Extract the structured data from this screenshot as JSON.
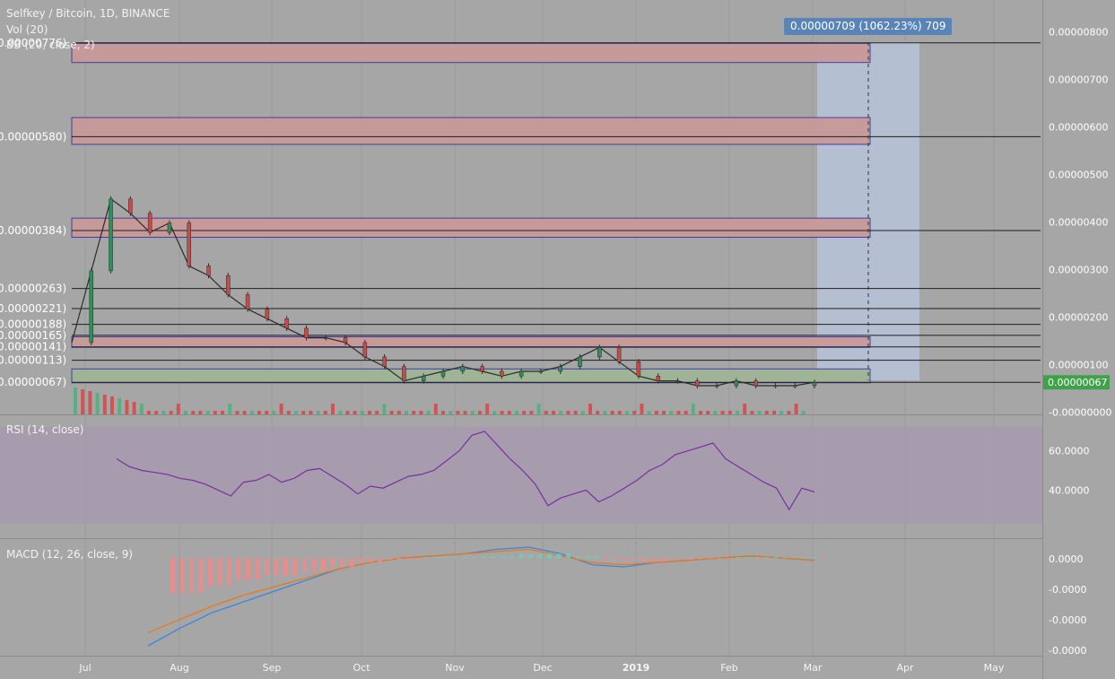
{
  "main_pane": {
    "title": "Selfkey / Bitcoin, 1D, BINANCE",
    "vol_legend": "Vol (20)",
    "bb_legend": "BB (20, close, 2)",
    "price_label": "0.00000067",
    "price_label_color": "#3fa24a",
    "measure_label": "0.00000709 (1062.23%) 709",
    "measure_color": "#5a83b8"
  },
  "rsi_pane": {
    "legend": "RSI (14, close)",
    "line_color": "#7a2fa0",
    "band_color": "#a79aae"
  },
  "macd_pane": {
    "legend": "MACD (12, 26, close, 9)",
    "macd_color": "#3a86d8",
    "signal_color": "#e8781e"
  },
  "chart_data": [
    {
      "type": "candlestick",
      "title": "Selfkey / Bitcoin, 1D, BINANCE",
      "x_ticks": [
        "Jul",
        "Aug",
        "Sep",
        "Oct",
        "Nov",
        "Dec",
        "2019",
        "Feb",
        "Mar",
        "Apr",
        "May"
      ],
      "y_ticks": [
        "0.00000800",
        "0.00000700",
        "0.00000600",
        "0.00000500",
        "0.00000400",
        "0.00000300",
        "0.00000200",
        "0.00000100",
        "-0.00000000"
      ],
      "ylim": [
        0,
        8e-06
      ],
      "close_series": [
        {
          "x": "Jun 27",
          "y": 1.5e-06
        },
        {
          "x": "Jun 28",
          "y": 3e-06
        },
        {
          "x": "Jun 29",
          "y": 4.5e-06
        },
        {
          "x": "Jun 30",
          "y": 4.2e-06
        },
        {
          "x": "Jul 1",
          "y": 3.8e-06
        },
        {
          "x": "Jul 3",
          "y": 4e-06
        },
        {
          "x": "Jul 5",
          "y": 3.1e-06
        },
        {
          "x": "Jul 8",
          "y": 2.9e-06
        },
        {
          "x": "Jul 10",
          "y": 2.5e-06
        },
        {
          "x": "Jul 12",
          "y": 2.2e-06
        },
        {
          "x": "Jul 15",
          "y": 2e-06
        },
        {
          "x": "Jul 18",
          "y": 1.8e-06
        },
        {
          "x": "Jul 21",
          "y": 1.6e-06
        },
        {
          "x": "Jul 25",
          "y": 1.6e-06
        },
        {
          "x": "Jul 29",
          "y": 1.5e-06
        },
        {
          "x": "Aug 3",
          "y": 1.2e-06
        },
        {
          "x": "Aug 8",
          "y": 1e-06
        },
        {
          "x": "Aug 12",
          "y": 7e-07
        },
        {
          "x": "Aug 18",
          "y": 8e-07
        },
        {
          "x": "Aug 25",
          "y": 9e-07
        },
        {
          "x": "Sep 1",
          "y": 1e-06
        },
        {
          "x": "Sep 10",
          "y": 9e-07
        },
        {
          "x": "Sep 20",
          "y": 8e-07
        },
        {
          "x": "Oct 1",
          "y": 9e-07
        },
        {
          "x": "Oct 10",
          "y": 9e-07
        },
        {
          "x": "Oct 20",
          "y": 1e-06
        },
        {
          "x": "Oct 28",
          "y": 1.2e-06
        },
        {
          "x": "Nov 2",
          "y": 1.4e-06
        },
        {
          "x": "Nov 10",
          "y": 1.1e-06
        },
        {
          "x": "Nov 18",
          "y": 8e-07
        },
        {
          "x": "Nov 25",
          "y": 7e-07
        },
        {
          "x": "Dec 5",
          "y": 7e-07
        },
        {
          "x": "Dec 20",
          "y": 6e-07
        },
        {
          "x": "Jan 5",
          "y": 6e-07
        },
        {
          "x": "Jan 20",
          "y": 7e-07
        },
        {
          "x": "Feb 1",
          "y": 6e-07
        },
        {
          "x": "Feb 15",
          "y": 6e-07
        },
        {
          "x": "Feb 28",
          "y": 6e-07
        },
        {
          "x": "Mar 1",
          "y": 6.7e-07
        }
      ],
      "levels": [
        {
          "label": "0.00000776",
          "value": 7.76e-06
        },
        {
          "label": "0.00000580",
          "value": 5.8e-06
        },
        {
          "label": "0.00000384",
          "value": 3.84e-06
        },
        {
          "label": "0.00000263",
          "value": 2.63e-06
        },
        {
          "label": "0.00000221",
          "value": 2.21e-06
        },
        {
          "label": "0.00000188",
          "value": 1.88e-06
        },
        {
          "label": "0.00000165",
          "value": 1.65e-06
        },
        {
          "label": "0.00000141",
          "value": 1.41e-06
        },
        {
          "label": "0.00000113",
          "value": 1.13e-06
        },
        {
          "label": "0.00000067",
          "value": 6.7e-07
        }
      ],
      "zones": [
        {
          "from": 7.35e-06,
          "to": 7.75e-06,
          "color": "#c99a9a"
        },
        {
          "from": 5.64e-06,
          "to": 6.2e-06,
          "color": "#c99a9a"
        },
        {
          "from": 3.7e-06,
          "to": 4.1e-06,
          "color": "#c99a9a"
        },
        {
          "from": 1.4e-06,
          "to": 1.62e-06,
          "color": "#c99a9a"
        },
        {
          "from": 6.6e-07,
          "to": 9.5e-07,
          "color": "#9fb596"
        }
      ]
    },
    {
      "type": "line",
      "title": "RSI (14, close)",
      "y_ticks": [
        "60.0000",
        "40.0000"
      ],
      "ylim": [
        20,
        75
      ],
      "series": [
        {
          "values": [
            56,
            52,
            50,
            49,
            48,
            46,
            45,
            43,
            40,
            37,
            44,
            45,
            48,
            44,
            46,
            50,
            51,
            47,
            43,
            38,
            42,
            41,
            44,
            47,
            48,
            50,
            55,
            60,
            68,
            70,
            63,
            56,
            50,
            43,
            32,
            36,
            38,
            40,
            34,
            37,
            41,
            45,
            50,
            53,
            58,
            60,
            62,
            64,
            56,
            52,
            48,
            44,
            41,
            30,
            41,
            39
          ]
        }
      ]
    },
    {
      "type": "line",
      "title": "MACD (12, 26, close, 9)",
      "y_ticks": [
        "0.0000",
        "-0.0000",
        "-0.0000",
        "-0.0000"
      ],
      "series": [
        {
          "values": [
            -4e-07,
            -3.2e-07,
            -2.5e-07,
            -2e-07,
            -1.5e-07,
            -1e-07,
            -5e-08,
            -2e-08,
            0.0,
            1e-08,
            2e-08,
            4e-08,
            5e-08,
            2e-08,
            -3e-08,
            -4e-08,
            -2e-08,
            -1e-08,
            0.0,
            1e-08,
            0.0,
            -1e-08
          ]
        },
        {
          "values": [
            -3.4e-07,
            -2.8e-07,
            -2.2e-07,
            -1.7e-07,
            -1.3e-07,
            -9e-08,
            -5e-08,
            -2e-08,
            0.0,
            1e-08,
            2e-08,
            3e-08,
            4e-08,
            1e-08,
            -2e-08,
            -3e-08,
            -2e-08,
            -1e-08,
            0.0,
            1e-08,
            0.0,
            -1e-08
          ]
        }
      ]
    }
  ]
}
